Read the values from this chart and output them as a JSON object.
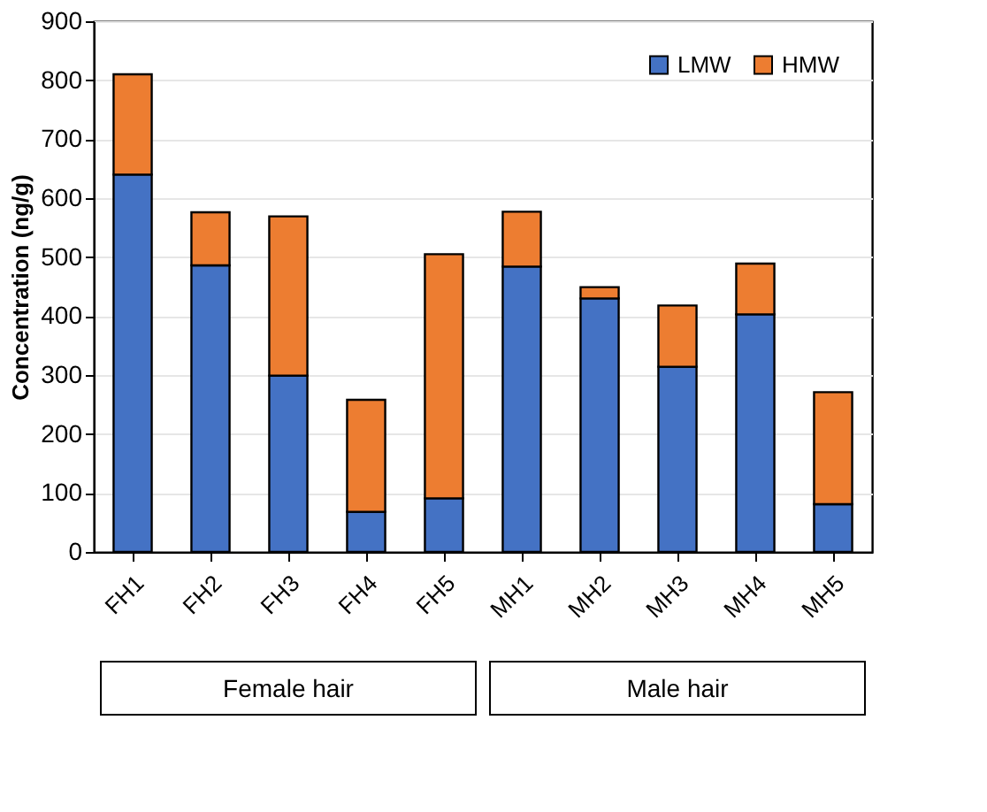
{
  "chart_data": {
    "type": "bar",
    "stacked": true,
    "ylabel": "Concentration (ng/g)",
    "categories": [
      "FH1",
      "FH2",
      "FH3",
      "FH4",
      "FH5",
      "MH1",
      "MH2",
      "MH3",
      "MH4",
      "MH5"
    ],
    "series": [
      {
        "name": "LMW",
        "color": "#4472c4",
        "values": [
          640,
          486,
          299,
          68,
          91,
          484,
          430,
          314,
          403,
          81
        ]
      },
      {
        "name": "HMW",
        "color": "#ed7d31",
        "values": [
          170,
          90,
          270,
          190,
          414,
          93,
          19,
          104,
          86,
          190
        ]
      }
    ],
    "ylim": [
      0,
      900
    ],
    "yticks": [
      0,
      100,
      200,
      300,
      400,
      500,
      600,
      700,
      800,
      900
    ],
    "grid": "y",
    "legend": "top right",
    "annotations": [
      "Female hair",
      "Male hair"
    ]
  }
}
